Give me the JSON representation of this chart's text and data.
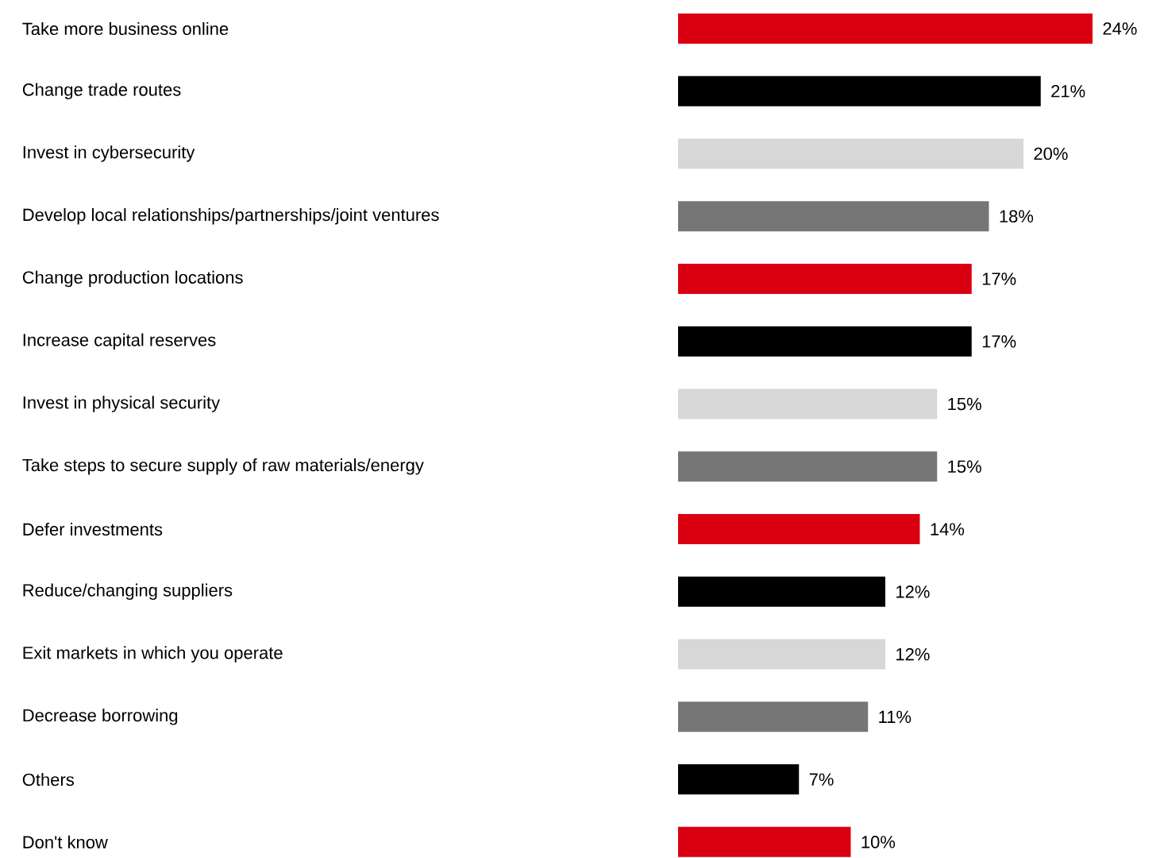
{
  "chart_data": {
    "type": "bar",
    "orientation": "horizontal",
    "tick_labels": "y",
    "categories": [
      "Take more business online",
      "Change trade routes",
      "Invest in cybersecurity",
      "Develop local relationships/partnerships/joint ventures",
      "Change production locations",
      "Increase capital reserves",
      "Invest in physical security",
      "Take steps to secure supply of raw materials/energy",
      "Defer investments",
      "Reduce/changing suppliers",
      "Exit markets in which you operate",
      "Decrease borrowing",
      "Others",
      "Don't know"
    ],
    "values": [
      24,
      21,
      20,
      18,
      17,
      17,
      15,
      15,
      14,
      12,
      12,
      11,
      7,
      10
    ],
    "value_labels": [
      "24%",
      "21%",
      "20%",
      "18%",
      "17%",
      "17%",
      "15%",
      "15%",
      "14%",
      "12%",
      "12%",
      "11%",
      "7%",
      "10%"
    ],
    "colors": [
      "#db0011",
      "#000000",
      "#d7d7d7",
      "#767676",
      "#db0011",
      "#000000",
      "#d7d7d7",
      "#767676",
      "#db0011",
      "#000000",
      "#d7d7d7",
      "#767676",
      "#000000",
      "#db0011"
    ]
  }
}
